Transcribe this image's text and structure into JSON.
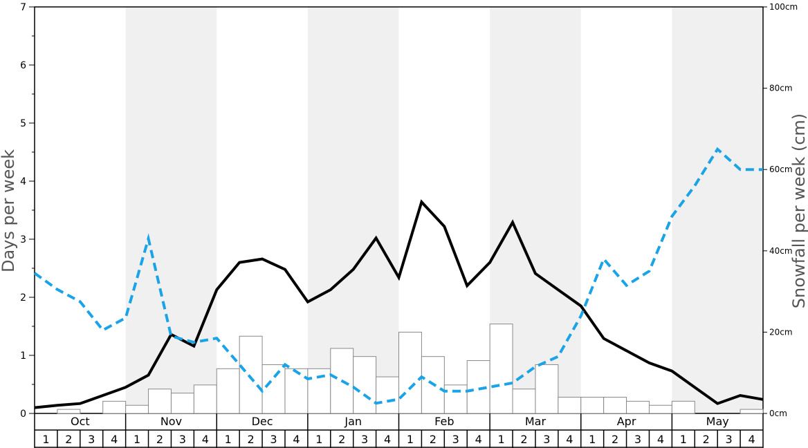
{
  "chart_data": {
    "type": "bar",
    "left_axis": {
      "label": "Days per week",
      "ylim": [
        0,
        7
      ],
      "ticks": [
        "0",
        "1",
        "2",
        "3",
        "4",
        "5",
        "6",
        "7"
      ]
    },
    "right_axis": {
      "label": "Snowfall per week (cm)",
      "ylim": [
        0,
        100
      ],
      "ticks": [
        "0cm",
        "20cm",
        "40cm",
        "60cm",
        "80cm",
        "100cm"
      ]
    },
    "months": [
      "Oct",
      "Nov",
      "Dec",
      "Jan",
      "Feb",
      "Mar",
      "Apr",
      "May"
    ],
    "weeks": [
      "1",
      "2",
      "3",
      "4"
    ],
    "shaded_months": [
      "Nov",
      "Jan",
      "Mar",
      "May"
    ],
    "colors": {
      "bars_fill": "#ffffff",
      "bars_stroke": "#888888",
      "days_line": "#000000",
      "snowfall_line": "#1aa3e6",
      "shade": "#f0f0f0"
    },
    "series": [
      {
        "id": "bars",
        "axis": "left",
        "style": "bars",
        "values": [
          0.0,
          0.07,
          0.0,
          0.21,
          0.14,
          0.42,
          0.35,
          0.49,
          0.77,
          1.33,
          0.84,
          0.77,
          0.77,
          1.12,
          0.98,
          0.63,
          1.4,
          0.98,
          0.49,
          0.91,
          1.54,
          0.42,
          0.84,
          0.28,
          0.28,
          0.28,
          0.21,
          0.14,
          0.21,
          0.0,
          0.0,
          0.07
        ]
      },
      {
        "id": "days-line",
        "axis": "left",
        "style": "solid",
        "values": [
          0.1,
          0.14,
          0.17,
          0.31,
          0.45,
          0.66,
          1.36,
          1.16,
          2.13,
          2.6,
          2.66,
          2.48,
          1.92,
          2.13,
          2.48,
          3.02,
          2.34,
          3.64,
          3.22,
          2.2,
          2.6,
          3.29,
          2.41,
          2.13,
          1.85,
          1.29,
          1.08,
          0.87,
          0.73,
          0.45,
          0.17,
          0.31,
          0.24
        ]
      },
      {
        "id": "snowfall-line",
        "axis": "right",
        "style": "dashed",
        "values": [
          34.5,
          30.5,
          27.5,
          20.5,
          23.5,
          43.0,
          19.0,
          17.5,
          18.5,
          12.0,
          5.5,
          12.0,
          8.5,
          9.5,
          6.5,
          2.5,
          3.5,
          9.0,
          5.5,
          5.5,
          6.5,
          7.5,
          11.5,
          14.0,
          24.0,
          38.0,
          31.5,
          35.0,
          48.5,
          56.0,
          65.0,
          60.0,
          60.0
        ]
      }
    ]
  }
}
